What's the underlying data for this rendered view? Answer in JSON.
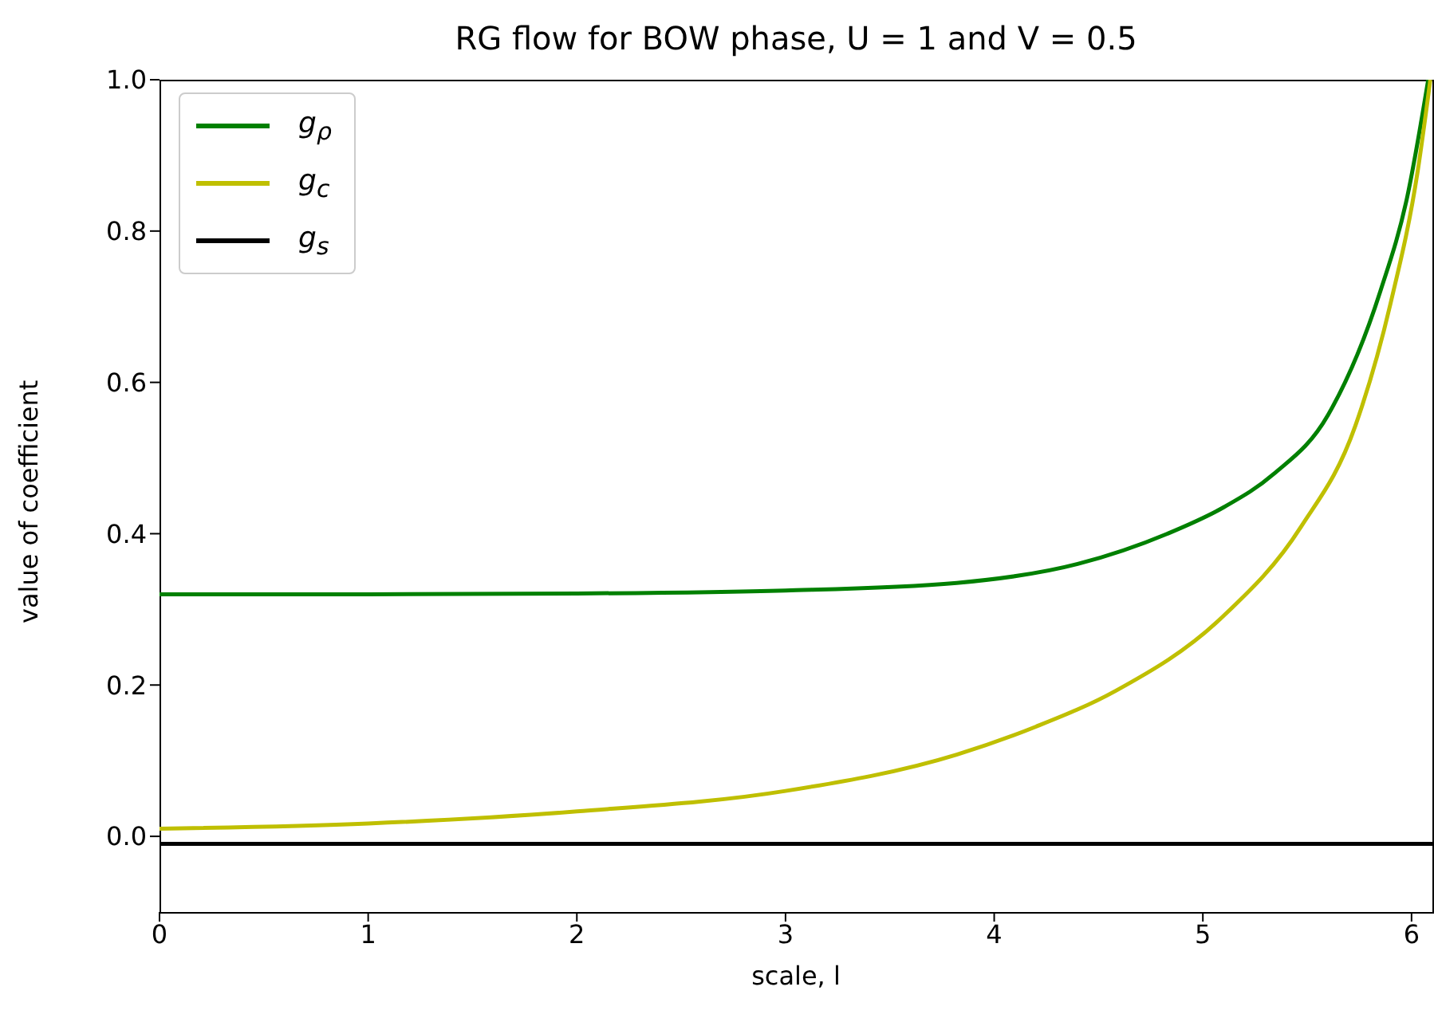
{
  "chart_data": {
    "type": "line",
    "title": "RG flow for BOW phase, U = 1 and V = 0.5",
    "xlabel": "scale, l",
    "ylabel": "value of coefficient",
    "xlim": [
      0,
      6.1
    ],
    "xticks": [
      0,
      1,
      2,
      3,
      4,
      5,
      6
    ],
    "ylim": [
      -0.1,
      1.0
    ],
    "yticks": [
      {
        "value": 0,
        "label": "0.0"
      },
      {
        "value": 0.2,
        "label": "0.2"
      },
      {
        "value": 0.4,
        "label": "0.4"
      },
      {
        "value": 0.6,
        "label": "0.6"
      },
      {
        "value": 0.8,
        "label": "0.8"
      },
      {
        "value": 1,
        "label": "1.0"
      }
    ],
    "grid": false,
    "legend": "top left",
    "marker": "none",
    "line_style": "solid",
    "series": [
      {
        "name": "g$_{ρ}$",
        "color": "#008000",
        "x": [
          0,
          1,
          2,
          3,
          3.82,
          4.4,
          4.83,
          5.1,
          5.34,
          5.6,
          5.85,
          5.98,
          6.08
        ],
        "values": [
          0.32,
          0.32,
          0.321,
          0.325,
          0.335,
          0.36,
          0.4,
          0.435,
          0.479,
          0.557,
          0.72,
          0.846,
          1.0
        ]
      },
      {
        "name": "g$_{c}$",
        "color": "#bfbf00",
        "x": [
          0,
          1,
          2,
          3,
          3.82,
          4.2,
          4.58,
          5.09,
          5.47,
          5.73,
          5.9,
          6.03,
          6.09
        ],
        "values": [
          0.01,
          0.017,
          0.033,
          0.06,
          0.108,
          0.145,
          0.192,
          0.289,
          0.409,
          0.542,
          0.705,
          0.88,
          1.0
        ]
      },
      {
        "name": "g$_{s}$",
        "color": "#000000",
        "x": [
          0,
          6.1
        ],
        "values": [
          -0.01,
          -0.01
        ]
      }
    ]
  }
}
